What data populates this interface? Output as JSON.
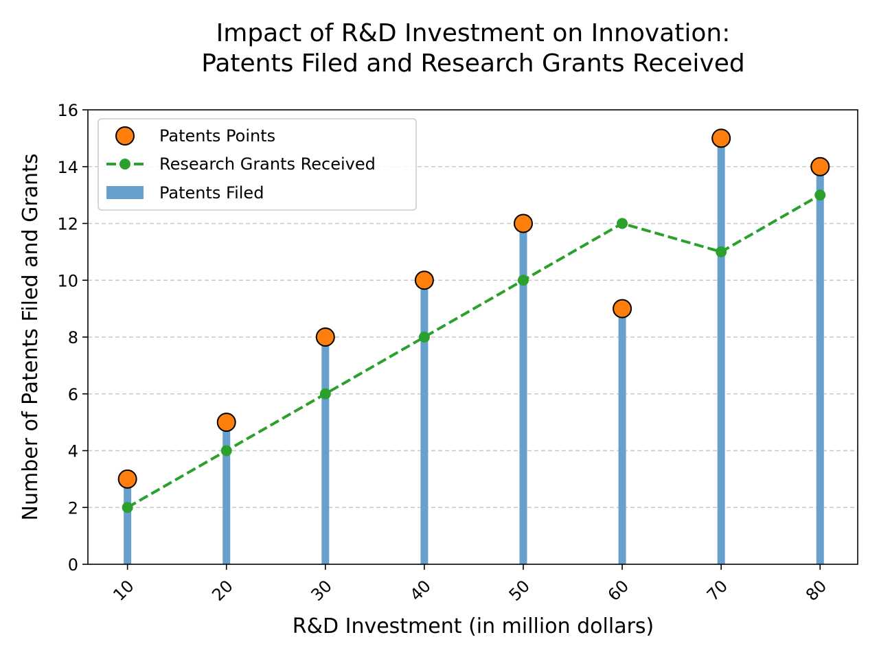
{
  "chart_data": {
    "type": "bar",
    "title_line1": "Impact of R&D Investment on Innovation:",
    "title_line2": "Patents Filed and Research Grants Received",
    "xlabel": "R&D Investment (in million dollars)",
    "ylabel": "Number of Patents Filed and Grants",
    "x": [
      10,
      20,
      30,
      40,
      50,
      60,
      70,
      80
    ],
    "ylim": [
      0,
      16
    ],
    "yticks": [
      0,
      2,
      4,
      6,
      8,
      10,
      12,
      14,
      16
    ],
    "grid": "y-dashed",
    "legend_position": "top-left",
    "series": [
      {
        "name": "Patents Filed",
        "kind": "stem-bar",
        "color": "#67a0cc",
        "values": [
          3,
          5,
          8,
          10,
          12,
          9,
          15,
          14
        ]
      },
      {
        "name": "Patents Points",
        "kind": "marker",
        "color": "#ff7f0e",
        "values": [
          3,
          5,
          8,
          10,
          12,
          9,
          15,
          14
        ]
      },
      {
        "name": "Research Grants Received",
        "kind": "dashed-line",
        "color": "#2ca02c",
        "values": [
          2,
          4,
          6,
          8,
          10,
          12,
          11,
          13
        ]
      }
    ],
    "legend": [
      "Patents Points",
      "Research Grants Received",
      "Patents Filed"
    ]
  }
}
